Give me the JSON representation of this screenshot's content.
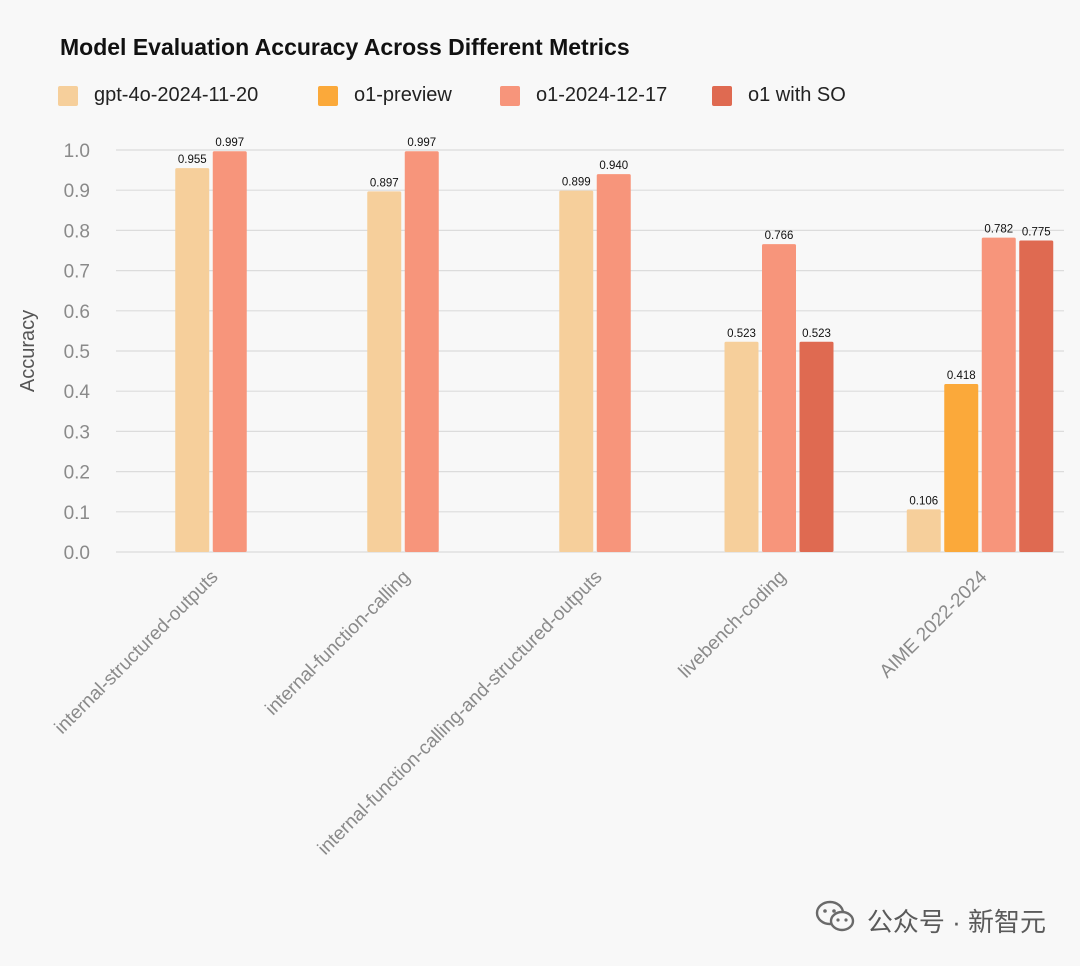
{
  "title": "Model Evaluation Accuracy Across Different Metrics",
  "watermark": "公众号 · 新智元",
  "colors": {
    "background": "#f8f8f8",
    "grid": "#dcdcdc",
    "axis_text": "#8a8a8a"
  },
  "chart_data": {
    "type": "bar",
    "title": "Model Evaluation Accuracy Across Different Metrics",
    "xlabel": "",
    "ylabel": "Accuracy",
    "ylim": [
      0,
      1.0
    ],
    "yticks": [
      "0.0",
      "0.1",
      "0.2",
      "0.3",
      "0.4",
      "0.5",
      "0.6",
      "0.7",
      "0.8",
      "0.9",
      "1.0"
    ],
    "grid": true,
    "legend_position": "top-left",
    "categories": [
      "internal-structured-outputs",
      "internal-function-calling",
      "internal-function-calling-and-structured-outputs",
      "livebench-coding",
      "AIME 2022-2024"
    ],
    "series": [
      {
        "name": "gpt-4o-2024-11-20",
        "color": "#f6cf9b",
        "values": [
          0.955,
          0.897,
          0.899,
          0.523,
          0.106
        ],
        "labels": [
          "0.955",
          "0.897",
          "0.899",
          "0.523",
          "0.106"
        ]
      },
      {
        "name": "o1-preview",
        "color": "#fba93a",
        "values": [
          null,
          null,
          null,
          null,
          0.418
        ],
        "labels": [
          "",
          "",
          "",
          "",
          "0.418"
        ]
      },
      {
        "name": "o1-2024-12-17",
        "color": "#f7957b",
        "values": [
          0.997,
          0.997,
          0.94,
          0.766,
          0.782
        ],
        "labels": [
          "0.997",
          "0.997",
          "0.940",
          "0.766",
          "0.782"
        ]
      },
      {
        "name": "o1 with SO",
        "color": "#df6a51",
        "values": [
          null,
          null,
          null,
          0.523,
          0.775
        ],
        "labels": [
          "",
          "",
          "",
          "0.523",
          "0.775"
        ]
      }
    ]
  }
}
